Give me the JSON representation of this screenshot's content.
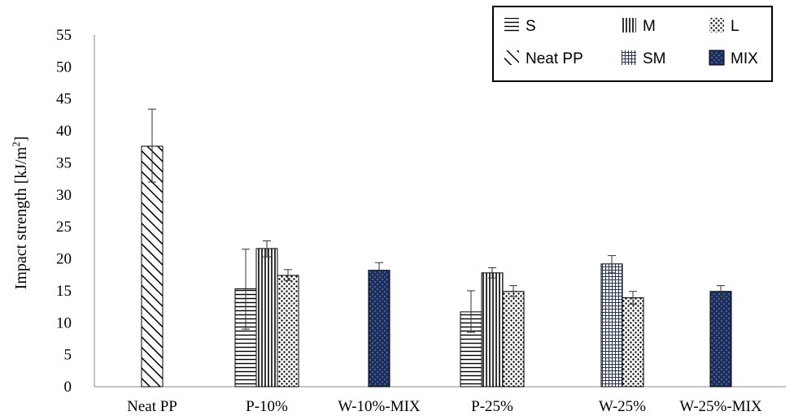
{
  "chart_data": {
    "type": "bar",
    "ylabel": "Impact strength [kJ/m",
    "ylabel_sup": "2",
    "ylabel_close": "]",
    "ylim": [
      0,
      55
    ],
    "yticks": [
      0,
      5,
      10,
      15,
      20,
      25,
      30,
      35,
      40,
      45,
      50,
      55
    ],
    "grid": false,
    "legend_position": "top-right",
    "categories": [
      "Neat PP",
      "P-10%",
      "W-10%-MIX",
      "P-25%",
      "W-25%",
      "W-25%-MIX"
    ],
    "series": [
      {
        "name": "S",
        "pattern": "horizontal-lines"
      },
      {
        "name": "M",
        "pattern": "vertical-lines"
      },
      {
        "name": "L",
        "pattern": "dots"
      },
      {
        "name": "Neat PP",
        "pattern": "diagonal-lines"
      },
      {
        "name": "SM",
        "pattern": "grid"
      },
      {
        "name": "MIX",
        "pattern": "navy-dots"
      }
    ],
    "bars": [
      {
        "category": "Neat PP",
        "series": "Neat PP",
        "value": 37.6,
        "error_low": 32.0,
        "error_high": 43.4
      },
      {
        "category": "P-10%",
        "series": "S",
        "value": 15.3,
        "error_low": 9.0,
        "error_high": 21.5
      },
      {
        "category": "P-10%",
        "series": "M",
        "value": 21.6,
        "error_low": 20.3,
        "error_high": 22.8
      },
      {
        "category": "P-10%",
        "series": "L",
        "value": 17.4,
        "error_low": 16.6,
        "error_high": 18.3
      },
      {
        "category": "W-10%-MIX",
        "series": "MIX",
        "value": 18.2,
        "error_low": 17.0,
        "error_high": 19.4
      },
      {
        "category": "P-25%",
        "series": "S",
        "value": 11.7,
        "error_low": 8.5,
        "error_high": 15.0
      },
      {
        "category": "P-25%",
        "series": "M",
        "value": 17.8,
        "error_low": 17.0,
        "error_high": 18.6
      },
      {
        "category": "P-25%",
        "series": "L",
        "value": 14.9,
        "error_low": 14.1,
        "error_high": 15.8
      },
      {
        "category": "W-25%",
        "series": "SM",
        "value": 19.2,
        "error_low": 17.8,
        "error_high": 20.5
      },
      {
        "category": "W-25%",
        "series": "L",
        "value": 13.9,
        "error_low": 12.9,
        "error_high": 14.9
      },
      {
        "category": "W-25%-MIX",
        "series": "MIX",
        "value": 14.9,
        "error_low": 14.0,
        "error_high": 15.8
      }
    ]
  }
}
